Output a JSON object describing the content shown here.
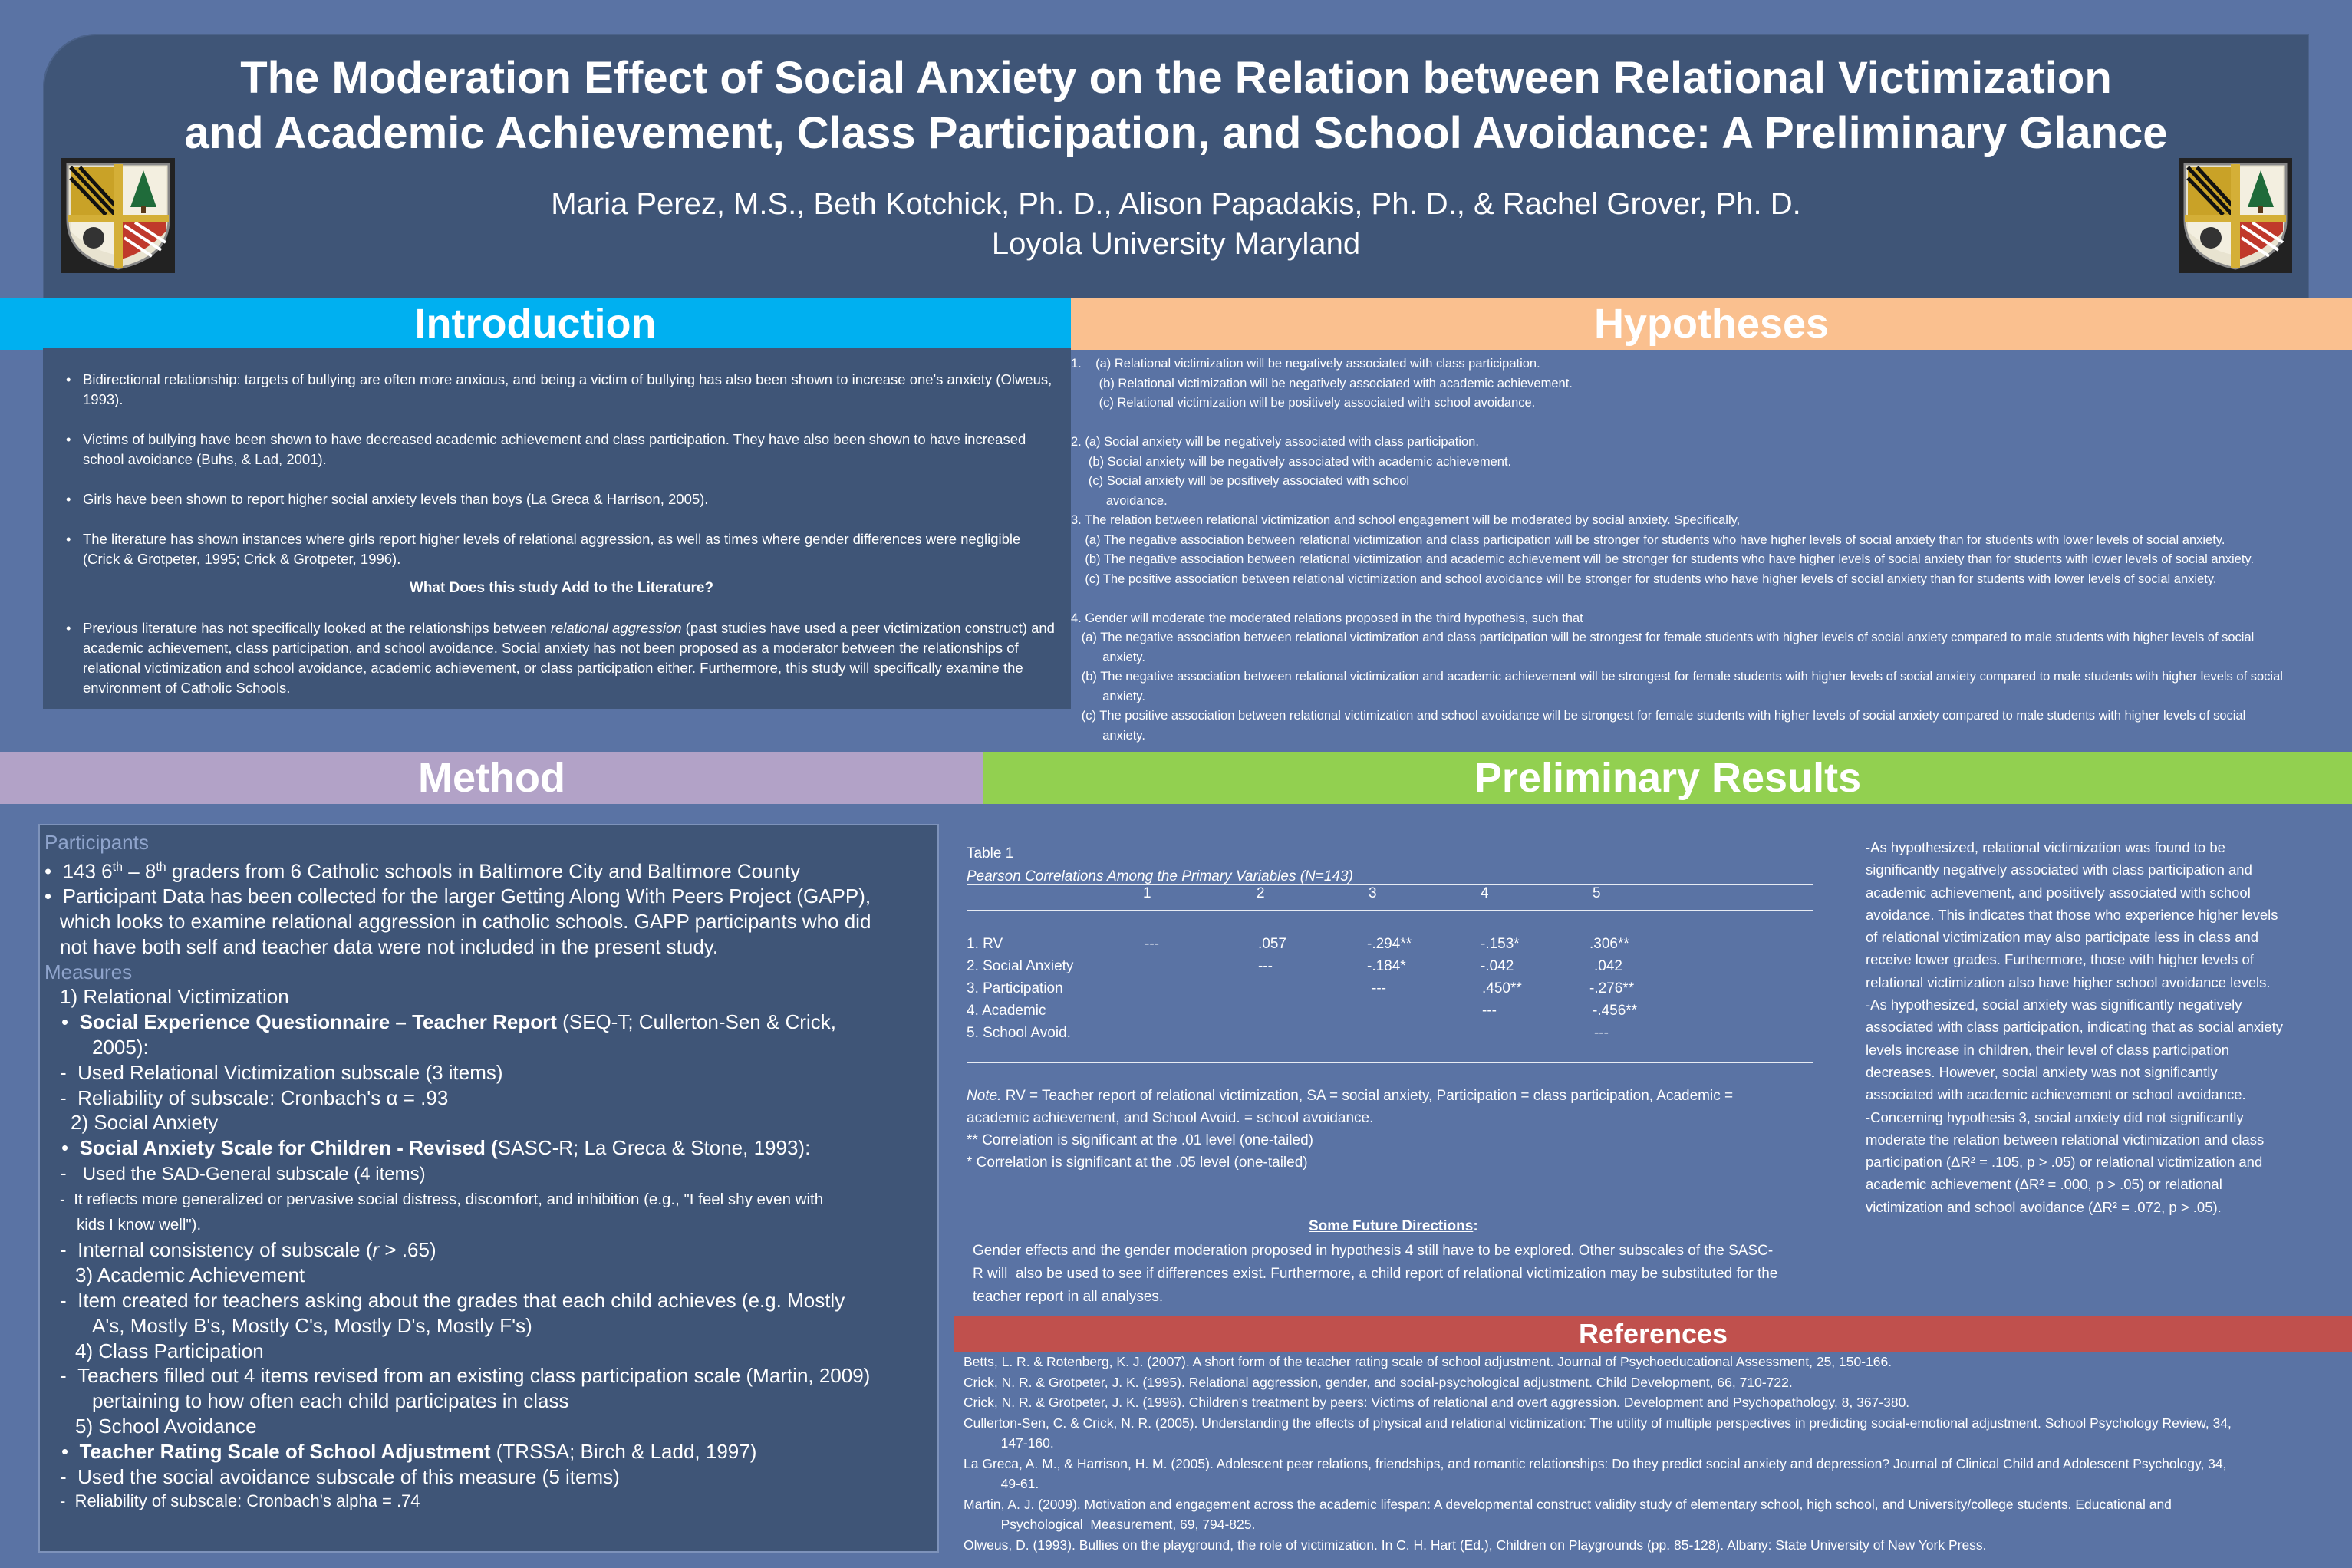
{
  "header": {
    "title_line1": "The Moderation Effect of Social Anxiety on the Relation between Relational Victimization",
    "title_line2": "and Academic Achievement, Class Participation, and School Avoidance: A Preliminary Glance",
    "authors": "Maria Perez, M.S., Beth Kotchick, Ph. D., Alison Papadakis, Ph. D., & Rachel Grover, Ph. D.",
    "affiliation": "Loyola University Maryland",
    "crest_icon": "university-crest-icon"
  },
  "colors": {
    "background": "#5a73a4",
    "panel": "#3f5577",
    "introduction": "#00b0f0",
    "hypotheses": "#fac08f",
    "method": "#b2a2c7",
    "results": "#92d050",
    "references": "#c0504d"
  },
  "introduction": {
    "heading": "Introduction",
    "bullets": [
      "Bidirectional relationship: targets of bullying are often more anxious,  and being a victim of bullying has also been shown to increase one's anxiety (Olweus, 1993).",
      "Victims of bullying  have been shown to have decreased academic achievement and class participation. They have also been shown to have increased school avoidance  (Buhs, & Lad, 2001).",
      "Girls have been shown to report  higher social anxiety levels than boys (La Greca & Harrison, 2005).",
      "The literature has shown instances where girls report higher levels of relational aggression, as well as times where gender differences were negligible (Crick & Grotpeter, 1995; Crick & Grotpeter, 1996)."
    ],
    "subheading": "What Does this study Add to the Literature?",
    "last_bullet_pre": "Previous literature has not specifically looked at the relationships between ",
    "last_bullet_italic": "relational aggression",
    "last_bullet_post": " (past studies have used a peer victimization construct) and academic achievement,  class participation, and school avoidance.  Social anxiety has not been proposed as a moderator between the relationships of relational victimization and school avoidance, academic achievement, or class participation either. Furthermore, this study will specifically examine the environment of Catholic Schools."
  },
  "hypotheses": {
    "heading": "Hypotheses",
    "text": "1.    (a) Relational victimization will be negatively associated with class participation.\n        (b) Relational victimization will be negatively associated with academic achievement.\n        (c) Relational victimization will be positively associated with school avoidance.\n\n2. (a) Social anxiety will be negatively associated with class participation.\n     (b) Social anxiety will be negatively associated with academic achievement.\n     (c) Social anxiety will be positively associated with school\n          avoidance.\n3. The relation between relational victimization and school engagement will be moderated by social anxiety. Specifically,\n    (a) The negative association between relational victimization and class participation will be stronger for students who have higher levels of social anxiety than for students with lower levels of social anxiety.\n    (b) The negative association between relational victimization and academic achievement will be stronger for students who have higher levels of social anxiety than for students with lower levels of social anxiety.\n    (c) The positive association between relational victimization and school avoidance will be stronger for students who have higher levels of social anxiety than for students with lower levels of social anxiety.\n\n4. Gender will moderate the moderated relations proposed in the third hypothesis, such that\n   (a) The negative association between relational victimization and class participation will be strongest for female students with higher levels of social anxiety compared to male students with higher levels of social\n         anxiety.\n   (b) The negative association between relational victimization and academic achievement will be strongest for female students with higher levels of social anxiety compared to male students with higher levels of social\n         anxiety.\n   (c) The positive association between relational victimization and school avoidance will be strongest for female students with higher levels of social anxiety compared to male students with higher levels of social\n         anxiety."
  },
  "method": {
    "heading": "Method",
    "participants_head": "Participants",
    "p1_pre": "143 6",
    "p1_sup1": "th",
    "p1_mid": " – 8",
    "p1_sup2": "th",
    "p1_post": " graders from 6 Catholic schools in Baltimore City and Baltimore County",
    "p2_line1": "Participant Data has been collected for the larger Getting Along With Peers Project (GAPP),",
    "p2_line2": "which looks to examine relational aggression in catholic schools. GAPP participants who did",
    "p2_line3": "not have both self and teacher data were not included in the present study.",
    "measures_head": "Measures",
    "m1": "1) Relational Victimization",
    "m1a_bold": "Social Experience Questionnaire – Teacher Report",
    "m1a_rest": " (SEQ-T; Cullerton-Sen & Crick,",
    "m1a_cont": "2005):",
    "m1b": "Used Relational Victimization subscale (3 items)",
    "m1c": "Reliability of subscale: Cronbach's α  = .93",
    "m2": "2) Social Anxiety",
    "m2a_bold": "Social Anxiety Scale for Children - Revised (",
    "m2a_rest": "SASC-R; La Greca & Stone, 1993):",
    "m2b": " Used the SAD-General  subscale (4 items)",
    "m2c_line1": "It reflects more generalized  or pervasive social distress, discomfort,  and inhibition (e.g., \"I feel shy even with",
    "m2c_line2": "kids I know well\").",
    "m2d_pre": "Internal consistency of subscale (",
    "m2d_it": "r",
    "m2d_post": " > .65)",
    "m3": "3) Academic Achievement",
    "m3a_line1": "Item created for teachers asking about the grades that each child achieves (e.g. Mostly",
    "m3a_line2": "A's, Mostly B's, Mostly C's, Mostly D's, Mostly F's)",
    "m4": "4) Class Participation",
    "m4a_line1": "Teachers filled out 4 items revised from an existing class participation scale (Martin, 2009)",
    "m4a_line2": "pertaining to how often each child participates in class",
    "m5": "5) School Avoidance",
    "m5a_bold": "Teacher Rating Scale of School Adjustment",
    "m5a_rest": " (TRSSA; Birch & Ladd, 1997)",
    "m5b": "Used the social avoidance subscale of this measure (5 items)",
    "m5c": "Reliability of subscale: Cronbach's alpha = .74"
  },
  "results": {
    "heading": "Preliminary Results",
    "table_label": "Table 1",
    "table_caption": "Pearson Correlations Among the Primary Variables (N=143)",
    "col_headers": [
      "1",
      "2",
      "3",
      "4",
      "5"
    ],
    "row_labels": [
      "1. RV",
      "2. Social Anxiety",
      "3. Participation",
      "4. Academic",
      "5. School Avoid."
    ],
    "rows": [
      [
        "---",
        ".057",
        "-.294**",
        "-.153*",
        ".306**"
      ],
      [
        "",
        "---",
        "-.184*",
        "-.042",
        ".042"
      ],
      [
        "",
        "",
        "---",
        ".450**",
        "-.276**"
      ],
      [
        "",
        "",
        "",
        "---",
        "-.456**"
      ],
      [
        "",
        "",
        "",
        "",
        "---"
      ]
    ],
    "note_label": "Note.",
    "note_text": " RV = Teacher report of relational victimization,  SA = social anxiety, Participation = class participation, Academic =",
    "note_line2": "academic achievement,  and School Avoid. = school avoidance.",
    "note_line3": "** Correlation is significant  at the .01 level (one-tailed)",
    "note_line4": "* Correlation is significant  at the .05 level (one-tailed)",
    "future_heading": "Some Future Directions",
    "future_colon": ":",
    "future_text": "Gender effects and the gender moderation proposed in hypothesis 4 still have to be explored. Other subscales of the SASC-\nR will  also be used to see if differences exist. Furthermore, a child report of relational victimization may be substituted for the\nteacher report in all analyses.",
    "summary_text": "-As hypothesized, relational victimization was found to be\nsignificantly negatively associated with class participation and\nacademic achievement, and positively associated with school\navoidance. This indicates that those who experience higher levels\nof relational victimization may also participate less in class and\nreceive lower grades. Furthermore, those with higher levels of\nrelational victimization also have higher school avoidance levels.\n-As hypothesized, social anxiety was significantly negatively\nassociated with class participation, indicating that as social anxiety\nlevels increase in children, their level of class participation\ndecreases. However, social anxiety was not significantly\nassociated with academic achievement or school avoidance.\n-Concerning hypothesis 3, social anxiety did not significantly\nmoderate the relation between relational victimization and class\nparticipation (ΔR² = .105, p > .05) or relational victimization and\nacademic achievement (ΔR² = .000, p > .05) or relational\nvictimization and school avoidance (ΔR² = .072, p > .05)."
  },
  "references": {
    "heading": "References",
    "text": "Betts, L. R. & Rotenberg, K. J. (2007). A short form of the teacher rating scale of school adjustment. Journal of Psychoeducational Assessment, 25, 150-166.\nCrick, N. R. & Grotpeter, J. K. (1995). Relational aggression, gender, and social-psychological adjustment. Child Development, 66, 710-722.\nCrick, N. R. & Grotpeter, J. K. (1996). Children's treatment by peers: Victims of relational and overt aggression. Development and Psychopathology, 8, 367-380.\nCullerton-Sen, C. & Crick, N. R. (2005). Understanding the effects of physical and relational victimization: The utility of multiple perspectives in predicting social-emotional adjustment. School Psychology Review, 34,\n          147-160.\nLa Greca, A. M., & Harrison, H. M. (2005). Adolescent peer relations, friendships, and romantic relationships: Do they predict social anxiety and depression? Journal of Clinical Child and Adolescent Psychology, 34,\n          49-61.\nMartin, A. J. (2009). Motivation and engagement across the academic lifespan: A developmental construct validity study of elementary school, high school, and University/college students. Educational and\n          Psychological  Measurement, 69, 794-825.\nOlweus, D. (1993). Bullies on the playground, the role of victimization. In C. H. Hart (Ed.), Children on Playgrounds (pp. 85-128). Albany: State University of New York Press."
  }
}
